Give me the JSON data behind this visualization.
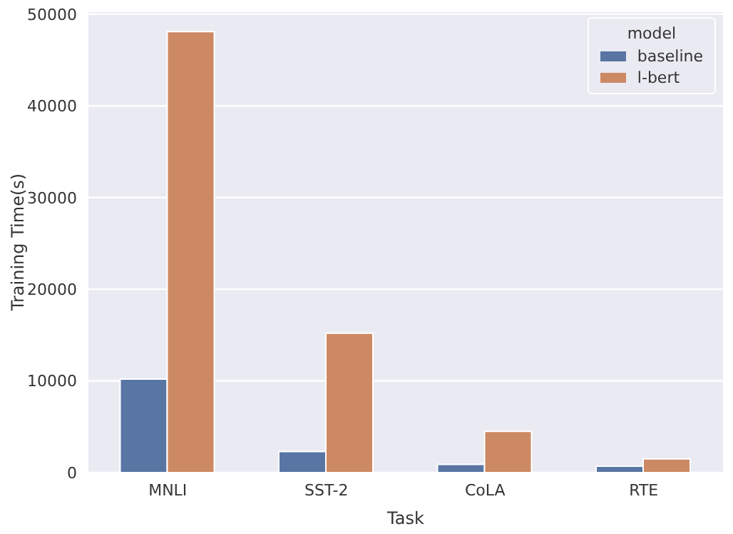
{
  "chart_data": {
    "type": "bar",
    "xlabel": "Task",
    "ylabel": "Training Time(s)",
    "legend_title": "model",
    "categories": [
      "MNLI",
      "SST-2",
      "CoLA",
      "RTE"
    ],
    "series": [
      {
        "name": "baseline",
        "color": "#5875a4",
        "values": [
          10200,
          2300,
          900,
          700
        ]
      },
      {
        "name": "l-bert",
        "color": "#cd8963",
        "values": [
          48100,
          15200,
          4500,
          1500
        ]
      }
    ],
    "ylim": [
      0,
      50300
    ],
    "yticks": [
      0,
      10000,
      20000,
      30000,
      40000,
      50000
    ],
    "grid": "y",
    "legend": "top right"
  }
}
